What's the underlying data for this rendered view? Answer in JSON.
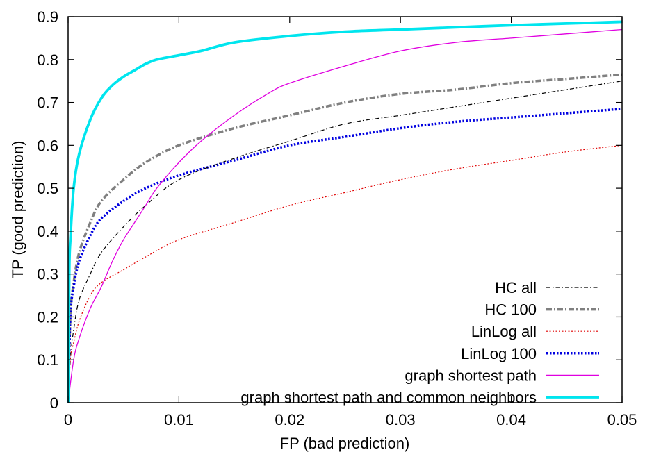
{
  "chart_data": {
    "type": "line",
    "xlabel": "FP (bad prediction)",
    "ylabel": "TP (good prediction)",
    "xlim": [
      0,
      0.05
    ],
    "ylim": [
      0,
      0.9
    ],
    "x_ticks": [
      "0",
      "0.01",
      "0.02",
      "0.03",
      "0.04",
      "0.05"
    ],
    "y_ticks": [
      "0",
      "0.1",
      "0.2",
      "0.3",
      "0.4",
      "0.5",
      "0.6",
      "0.7",
      "0.8",
      "0.9"
    ],
    "grid": false,
    "legend_position": "bottom-right",
    "series": [
      {
        "name": "HC all",
        "color": "#000000",
        "style": "dash-dot-thin",
        "x": [
          0,
          0.0002,
          0.0005,
          0.001,
          0.002,
          0.003,
          0.005,
          0.007,
          0.01,
          0.015,
          0.02,
          0.025,
          0.03,
          0.035,
          0.04,
          0.045,
          0.05
        ],
        "y": [
          0,
          0.1,
          0.17,
          0.24,
          0.3,
          0.35,
          0.41,
          0.46,
          0.52,
          0.57,
          0.61,
          0.65,
          0.67,
          0.69,
          0.71,
          0.73,
          0.75
        ]
      },
      {
        "name": "HC 100",
        "color": "#808080",
        "style": "dash-dot-thick",
        "x": [
          0,
          0.0002,
          0.0005,
          0.001,
          0.002,
          0.003,
          0.005,
          0.007,
          0.01,
          0.015,
          0.02,
          0.025,
          0.03,
          0.035,
          0.04,
          0.045,
          0.05
        ],
        "y": [
          0,
          0.2,
          0.28,
          0.35,
          0.42,
          0.47,
          0.52,
          0.56,
          0.6,
          0.64,
          0.67,
          0.7,
          0.72,
          0.73,
          0.745,
          0.755,
          0.765
        ]
      },
      {
        "name": "LinLog all",
        "color": "#e00000",
        "style": "dotted-thin",
        "x": [
          0,
          0.0002,
          0.0005,
          0.001,
          0.002,
          0.003,
          0.005,
          0.007,
          0.01,
          0.015,
          0.02,
          0.025,
          0.03,
          0.035,
          0.04,
          0.045,
          0.05
        ],
        "y": [
          0,
          0.1,
          0.14,
          0.19,
          0.25,
          0.28,
          0.31,
          0.34,
          0.38,
          0.42,
          0.46,
          0.49,
          0.52,
          0.545,
          0.565,
          0.585,
          0.6
        ]
      },
      {
        "name": "LinLog 100",
        "color": "#0000e0",
        "style": "dotted-thick",
        "x": [
          0,
          0.0002,
          0.0005,
          0.001,
          0.002,
          0.003,
          0.005,
          0.007,
          0.01,
          0.015,
          0.02,
          0.025,
          0.03,
          0.035,
          0.04,
          0.045,
          0.05
        ],
        "y": [
          0,
          0.2,
          0.27,
          0.33,
          0.39,
          0.43,
          0.47,
          0.5,
          0.53,
          0.565,
          0.6,
          0.62,
          0.64,
          0.655,
          0.665,
          0.675,
          0.685
        ]
      },
      {
        "name": "graph shortest path",
        "color": "#e000e0",
        "style": "solid-thin",
        "x": [
          0,
          0.0005,
          0.001,
          0.002,
          0.003,
          0.004,
          0.005,
          0.006,
          0.007,
          0.008,
          0.01,
          0.012,
          0.015,
          0.018,
          0.02,
          0.025,
          0.03,
          0.035,
          0.04,
          0.045,
          0.05
        ],
        "y": [
          0,
          0.1,
          0.15,
          0.22,
          0.27,
          0.33,
          0.38,
          0.42,
          0.46,
          0.5,
          0.56,
          0.61,
          0.67,
          0.72,
          0.745,
          0.785,
          0.82,
          0.84,
          0.85,
          0.86,
          0.87
        ]
      },
      {
        "name": "graph shortest path and common neighbors",
        "color": "#00e5ee",
        "style": "solid-thick",
        "x": [
          0,
          0.0001,
          0.0002,
          0.0005,
          0.001,
          0.002,
          0.003,
          0.004,
          0.005,
          0.006,
          0.007,
          0.008,
          0.01,
          0.012,
          0.015,
          0.02,
          0.025,
          0.03,
          0.035,
          0.04,
          0.045,
          0.05
        ],
        "y": [
          0,
          0.3,
          0.38,
          0.5,
          0.58,
          0.66,
          0.71,
          0.74,
          0.76,
          0.775,
          0.79,
          0.8,
          0.81,
          0.82,
          0.84,
          0.855,
          0.865,
          0.87,
          0.875,
          0.88,
          0.884,
          0.888
        ]
      }
    ]
  }
}
